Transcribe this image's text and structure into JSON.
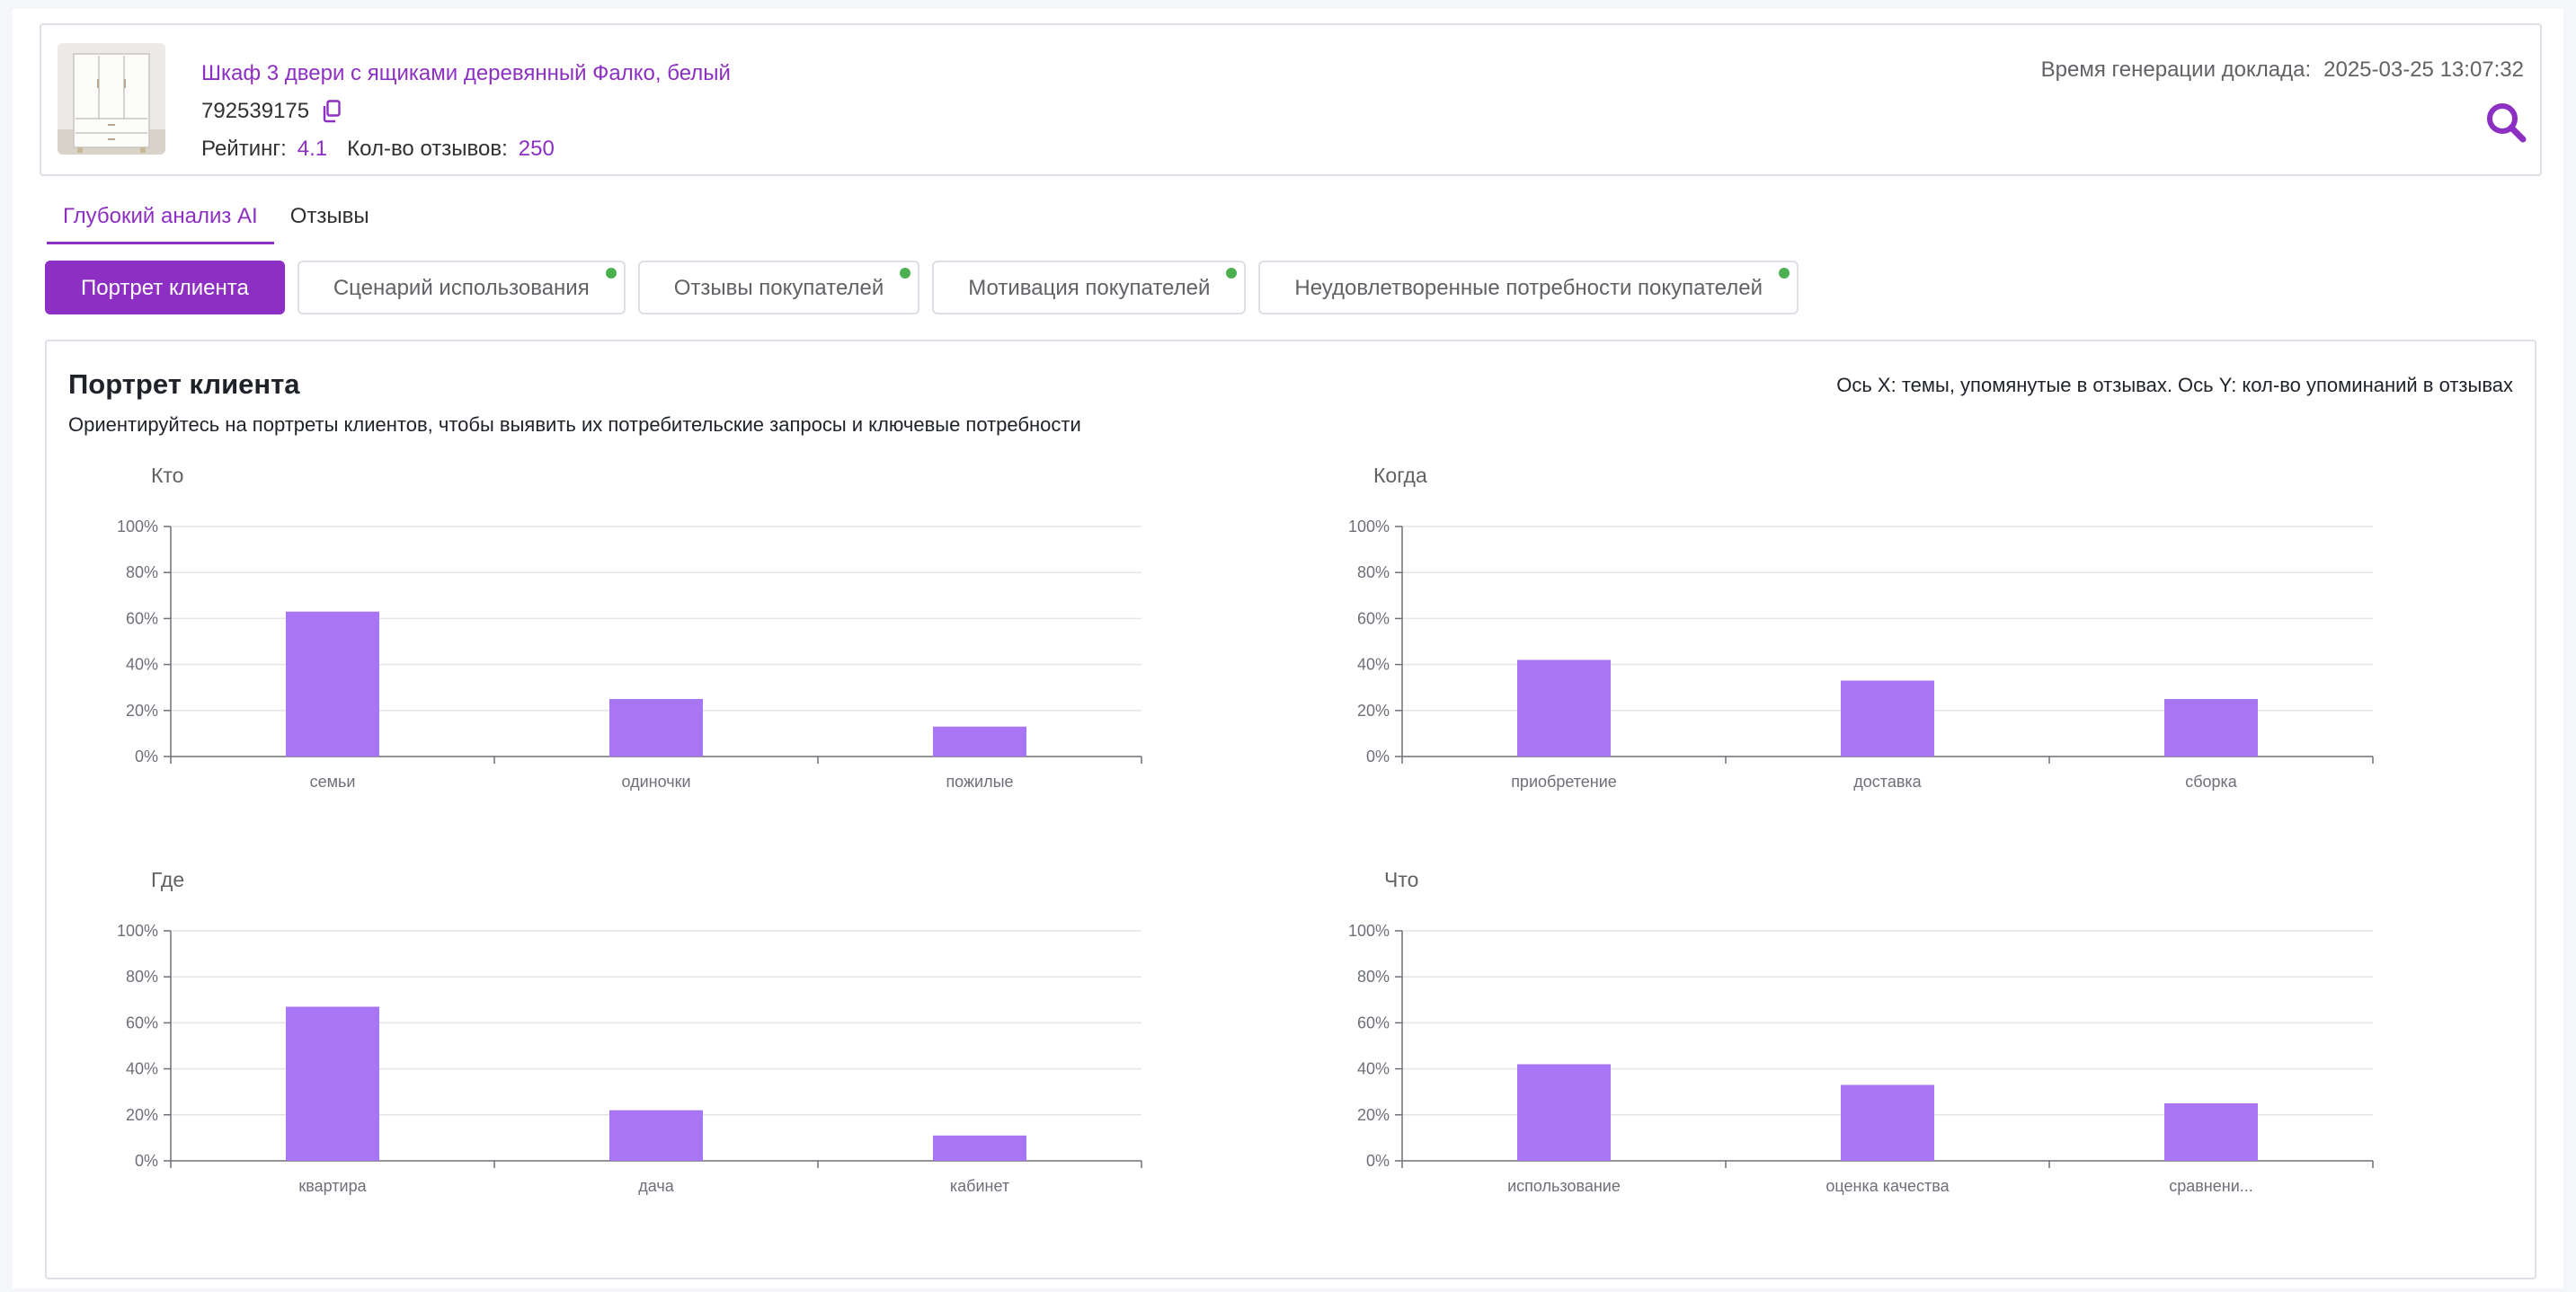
{
  "product": {
    "title": "Шкаф 3 двери с ящиками деревянный Фалко, белый",
    "sku": "792539175",
    "rating_label": "Рейтинг:",
    "rating_value": "4.1",
    "reviews_label": "Кол-во отзывов:",
    "reviews_value": "250",
    "generated_label": "Время генерации доклада:",
    "generated_value": "2025-03-25 13:07:32"
  },
  "top_tabs": [
    {
      "label": "Глубокий анализ AI",
      "active": true
    },
    {
      "label": "Отзывы",
      "active": false
    }
  ],
  "sub_tabs": [
    {
      "label": "Портрет клиента",
      "active": true,
      "dot": false
    },
    {
      "label": "Сценарий использования",
      "active": false,
      "dot": true
    },
    {
      "label": "Отзывы покупателей",
      "active": false,
      "dot": true
    },
    {
      "label": "Мотивация покупателей",
      "active": false,
      "dot": true
    },
    {
      "label": "Неудовлетворенные потребности покупателей",
      "active": false,
      "dot": true
    }
  ],
  "panel": {
    "title": "Портрет клиента",
    "subtitle": "Ориентируйтесь на портреты клиентов, чтобы выявить их потребительские запросы и ключевые потребности",
    "axis_note": "Ось X: темы, упомянутые в отзывах. Ось Y: кол-во упоминаний в отзывах"
  },
  "colors": {
    "accent": "#8e2fc4",
    "bar": "#a875f5",
    "status_dot": "#4caf50"
  },
  "chart_data": [
    {
      "type": "bar",
      "title": "Кто",
      "categories": [
        "семьи",
        "одиночки",
        "пожилые"
      ],
      "values": [
        63,
        25,
        13
      ],
      "ylim": [
        0,
        100
      ],
      "yticks": [
        "0%",
        "20%",
        "40%",
        "60%",
        "80%",
        "100%"
      ],
      "grid": true
    },
    {
      "type": "bar",
      "title": "Когда",
      "categories": [
        "приобретение",
        "доставка",
        "сборка"
      ],
      "values": [
        42,
        33,
        25
      ],
      "ylim": [
        0,
        100
      ],
      "yticks": [
        "0%",
        "20%",
        "40%",
        "60%",
        "80%",
        "100%"
      ],
      "grid": true
    },
    {
      "type": "bar",
      "title": "Где",
      "categories": [
        "квартира",
        "дача",
        "кабинет"
      ],
      "values": [
        67,
        22,
        11
      ],
      "ylim": [
        0,
        100
      ],
      "yticks": [
        "0%",
        "20%",
        "40%",
        "60%",
        "80%",
        "100%"
      ],
      "grid": true
    },
    {
      "type": "bar",
      "title": "Что",
      "categories": [
        "использование",
        "оценка качества",
        "сравнени..."
      ],
      "values": [
        42,
        33,
        25
      ],
      "ylim": [
        0,
        100
      ],
      "yticks": [
        "0%",
        "20%",
        "40%",
        "60%",
        "80%",
        "100%"
      ],
      "grid": true
    }
  ]
}
